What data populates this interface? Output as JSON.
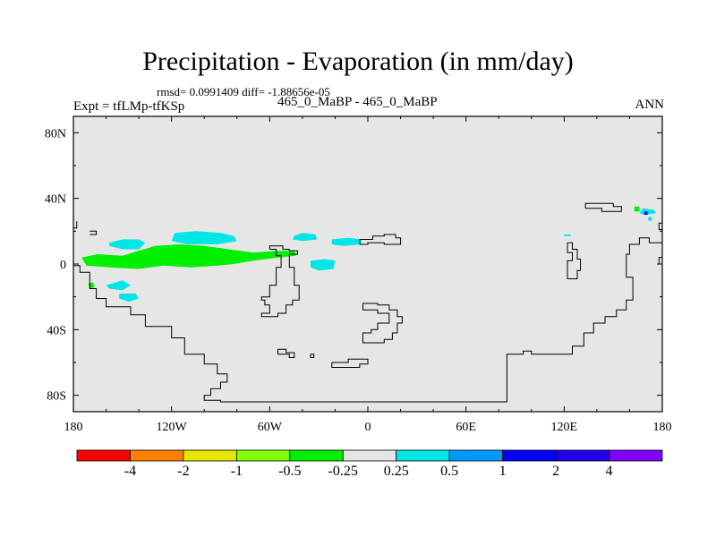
{
  "chart_data": {
    "type": "heatmap",
    "title": "Precipitation - Evaporation (in mm/day)",
    "stats_text": "rmsd= 0.0991409 diff= -1.88656e-05",
    "experiment": "Expt = tfLMp-tfKSp",
    "center_label": "465_0_MaBP - 465_0_MaBP",
    "season": "ANN",
    "xlim": [
      -180,
      180
    ],
    "ylim": [
      -90,
      90
    ],
    "x_ticks": [
      {
        "value": -180,
        "label": "180"
      },
      {
        "value": -120,
        "label": "120W"
      },
      {
        "value": -60,
        "label": "60W"
      },
      {
        "value": 0,
        "label": "0"
      },
      {
        "value": 60,
        "label": "60E"
      },
      {
        "value": 120,
        "label": "120E"
      },
      {
        "value": 180,
        "label": "180"
      }
    ],
    "y_ticks": [
      {
        "value": 80,
        "label": "80N"
      },
      {
        "value": 40,
        "label": "40N"
      },
      {
        "value": 0,
        "label": "0"
      },
      {
        "value": -40,
        "label": "40S"
      },
      {
        "value": -80,
        "label": "80S"
      }
    ],
    "colorbar": {
      "colors": [
        "#ff0000",
        "#ff8000",
        "#e6e600",
        "#80ff00",
        "#00f000",
        "#e6e6e6",
        "#00e6e6",
        "#0099ff",
        "#0000ff",
        "#2000e6",
        "#8000ff"
      ],
      "labels": [
        "-4",
        "-2",
        "-1",
        "-0.5",
        "-0.25",
        "0.25",
        "0.5",
        "1",
        "2",
        "4"
      ]
    },
    "regions": [
      {
        "class": "-0.5 to -0.25",
        "color": "#00f000",
        "points": [
          [
            -175,
            4
          ],
          [
            -165,
            6
          ],
          [
            -150,
            5
          ],
          [
            -130,
            11
          ],
          [
            -115,
            12
          ],
          [
            -100,
            11
          ],
          [
            -85,
            9
          ],
          [
            -70,
            7
          ],
          [
            -55,
            8
          ],
          [
            -45,
            8
          ],
          [
            -44,
            5
          ],
          [
            -55,
            4
          ],
          [
            -70,
            2
          ],
          [
            -82,
            0
          ],
          [
            -92,
            -1
          ],
          [
            -108,
            -2
          ],
          [
            -125,
            -1
          ],
          [
            -140,
            -3
          ],
          [
            -158,
            -2
          ],
          [
            -172,
            -1
          ]
        ]
      },
      {
        "class": "-0.5 to -0.25",
        "color": "#00f000",
        "points": [
          [
            -171,
            -12
          ],
          [
            -168,
            -11
          ],
          [
            -167,
            -14
          ],
          [
            -170,
            -15
          ]
        ]
      },
      {
        "class": "-0.5 to -0.25",
        "color": "#00f000",
        "points": [
          [
            163,
            35
          ],
          [
            166,
            35
          ],
          [
            166,
            32
          ],
          [
            163,
            32
          ]
        ]
      },
      {
        "class": "0.25 to 0.5",
        "color": "#00e6e6",
        "points": [
          [
            -158,
            13
          ],
          [
            -150,
            15
          ],
          [
            -140,
            15
          ],
          [
            -136,
            13
          ],
          [
            -140,
            9
          ],
          [
            -150,
            9
          ],
          [
            -158,
            11
          ]
        ]
      },
      {
        "class": "0.25 to 0.5",
        "color": "#00e6e6",
        "points": [
          [
            -118,
            19
          ],
          [
            -105,
            20
          ],
          [
            -90,
            19
          ],
          [
            -82,
            17
          ],
          [
            -80,
            14
          ],
          [
            -92,
            12
          ],
          [
            -110,
            12
          ],
          [
            -120,
            14
          ]
        ]
      },
      {
        "class": "0.25 to 0.5",
        "color": "#00e6e6",
        "points": [
          [
            -45,
            17
          ],
          [
            -40,
            19
          ],
          [
            -32,
            18
          ],
          [
            -31,
            15
          ],
          [
            -40,
            14
          ],
          [
            -46,
            15
          ]
        ]
      },
      {
        "class": "0.25 to 0.5",
        "color": "#00e6e6",
        "points": [
          [
            -22,
            15
          ],
          [
            -12,
            16
          ],
          [
            -4,
            15
          ],
          [
            -4,
            12
          ],
          [
            -15,
            11
          ],
          [
            -22,
            12
          ]
        ]
      },
      {
        "class": "0.25 to 0.5",
        "color": "#00e6e6",
        "points": [
          [
            -35,
            2
          ],
          [
            -26,
            3
          ],
          [
            -20,
            2
          ],
          [
            -21,
            -3
          ],
          [
            -30,
            -4
          ],
          [
            -35,
            -2
          ]
        ]
      },
      {
        "class": "0.25 to 0.5",
        "color": "#00e6e6",
        "points": [
          [
            -160,
            -13
          ],
          [
            -150,
            -10
          ],
          [
            -145,
            -13
          ],
          [
            -150,
            -16
          ],
          [
            -158,
            -15
          ]
        ]
      },
      {
        "class": "0.25 to 0.5",
        "color": "#00e6e6",
        "points": [
          [
            -152,
            -18
          ],
          [
            -142,
            -18
          ],
          [
            -140,
            -21
          ],
          [
            -146,
            -23
          ],
          [
            -152,
            -21
          ]
        ]
      },
      {
        "class": "0.25 to 0.5",
        "color": "#00e6e6",
        "points": [
          [
            120,
            18
          ],
          [
            124,
            18
          ],
          [
            124,
            17
          ],
          [
            120,
            17
          ]
        ]
      },
      {
        "class": "0.25 to 0.5",
        "color": "#00e6e6",
        "points": [
          [
            168,
            34
          ],
          [
            175,
            33
          ],
          [
            176,
            31
          ],
          [
            169,
            30
          ],
          [
            166,
            31
          ]
        ]
      },
      {
        "class": "0.25 to 0.5",
        "color": "#00e6e6",
        "points": [
          [
            172,
            29
          ],
          [
            174,
            28
          ],
          [
            173,
            26
          ],
          [
            171,
            27
          ]
        ]
      },
      {
        "class": "1 to 2",
        "color": "#0000ff",
        "points": [
          [
            169,
            32
          ],
          [
            171,
            32
          ],
          [
            171,
            30
          ],
          [
            169,
            30
          ]
        ]
      }
    ],
    "coastlines": [
      [
        [
          -170,
          18
        ],
        [
          -166,
          18
        ],
        [
          -166,
          20
        ],
        [
          -170,
          20
        ]
      ],
      [
        [
          -180,
          -1
        ],
        [
          -176,
          -1
        ],
        [
          -176,
          -5
        ],
        [
          -170,
          -5
        ],
        [
          -170,
          -15
        ],
        [
          -166,
          -15
        ],
        [
          -166,
          -21
        ],
        [
          -160,
          -21
        ],
        [
          -160,
          -26
        ],
        [
          -145,
          -26
        ],
        [
          -145,
          -31
        ],
        [
          -136,
          -31
        ],
        [
          -136,
          -38
        ],
        [
          -120,
          -38
        ],
        [
          -120,
          -45
        ],
        [
          -112,
          -45
        ],
        [
          -112,
          -55
        ],
        [
          -100,
          -55
        ],
        [
          -100,
          -61
        ],
        [
          -92,
          -61
        ],
        [
          -92,
          -67
        ],
        [
          -86,
          -67
        ],
        [
          -86,
          -72
        ],
        [
          -90,
          -72
        ],
        [
          -90,
          -76
        ],
        [
          -96,
          -76
        ],
        [
          -96,
          -80
        ],
        [
          -100,
          -80
        ],
        [
          -100,
          -83
        ],
        [
          -90,
          -83
        ],
        [
          -90,
          -84
        ],
        [
          -20,
          -84
        ],
        [
          -20,
          -84
        ],
        [
          60,
          -84
        ],
        [
          60,
          -84
        ],
        [
          85,
          -84
        ],
        [
          85,
          -55
        ],
        [
          95,
          -55
        ],
        [
          95,
          -53
        ],
        [
          100,
          -53
        ],
        [
          100,
          -55
        ],
        [
          125,
          -55
        ],
        [
          125,
          -50
        ],
        [
          132,
          -50
        ],
        [
          132,
          -42
        ],
        [
          138,
          -42
        ],
        [
          138,
          -36
        ],
        [
          145,
          -36
        ],
        [
          145,
          -32
        ],
        [
          152,
          -32
        ],
        [
          152,
          -28
        ],
        [
          158,
          -28
        ],
        [
          158,
          -22
        ],
        [
          162,
          -22
        ],
        [
          162,
          -8
        ],
        [
          158,
          -8
        ],
        [
          158,
          6
        ],
        [
          160,
          6
        ],
        [
          160,
          12
        ],
        [
          166,
          12
        ],
        [
          166,
          16
        ],
        [
          172,
          16
        ],
        [
          172,
          13
        ],
        [
          180,
          13
        ]
      ],
      [
        [
          -180,
          22
        ],
        [
          -178,
          22
        ],
        [
          -178,
          26
        ]
      ],
      [
        [
          -60,
          9
        ],
        [
          -56,
          9
        ],
        [
          -56,
          5
        ],
        [
          -53,
          5
        ],
        [
          -53,
          -2
        ],
        [
          -56,
          -2
        ],
        [
          -56,
          -13
        ],
        [
          -60,
          -13
        ],
        [
          -60,
          -20
        ],
        [
          -65,
          -20
        ],
        [
          -65,
          -22
        ],
        [
          -63,
          -22
        ],
        [
          -63,
          -25
        ],
        [
          -60,
          -25
        ],
        [
          -60,
          -30
        ],
        [
          -65,
          -30
        ],
        [
          -65,
          -32
        ],
        [
          -55,
          -32
        ],
        [
          -55,
          -30
        ],
        [
          -50,
          -30
        ],
        [
          -50,
          -25
        ],
        [
          -46,
          -25
        ],
        [
          -46,
          -22
        ],
        [
          -42,
          -22
        ],
        [
          -42,
          -13
        ],
        [
          -45,
          -13
        ],
        [
          -45,
          -2
        ],
        [
          -48,
          -2
        ],
        [
          -48,
          6
        ],
        [
          -43,
          6
        ],
        [
          -43,
          8
        ],
        [
          -48,
          8
        ],
        [
          -48,
          9
        ],
        [
          -52,
          9
        ],
        [
          -52,
          11
        ],
        [
          -60,
          11
        ],
        [
          -60,
          9
        ]
      ],
      [
        [
          -5,
          12
        ],
        [
          -5,
          15
        ],
        [
          3,
          15
        ],
        [
          3,
          17
        ],
        [
          10,
          17
        ],
        [
          10,
          18
        ],
        [
          17,
          18
        ],
        [
          17,
          16
        ],
        [
          20,
          16
        ],
        [
          20,
          12
        ],
        [
          10,
          12
        ],
        [
          10,
          13
        ],
        [
          0,
          13
        ],
        [
          0,
          12
        ],
        [
          -5,
          12
        ]
      ],
      [
        [
          -3,
          -25
        ],
        [
          -3,
          -28
        ],
        [
          6,
          -28
        ],
        [
          6,
          -30
        ],
        [
          13,
          -30
        ],
        [
          13,
          -36
        ],
        [
          6,
          -36
        ],
        [
          6,
          -40
        ],
        [
          2,
          -40
        ],
        [
          2,
          -42
        ],
        [
          -3,
          -42
        ],
        [
          -3,
          -48
        ],
        [
          10,
          -48
        ],
        [
          10,
          -46
        ],
        [
          15,
          -46
        ],
        [
          15,
          -42
        ],
        [
          18,
          -42
        ],
        [
          18,
          -36
        ],
        [
          21,
          -36
        ],
        [
          21,
          -32
        ],
        [
          18,
          -32
        ],
        [
          18,
          -28
        ],
        [
          13,
          -28
        ],
        [
          13,
          -25
        ],
        [
          6,
          -25
        ],
        [
          6,
          -24
        ],
        [
          -3,
          -24
        ],
        [
          -3,
          -25
        ]
      ],
      [
        [
          -35,
          -55
        ],
        [
          -35,
          -57
        ],
        [
          -33,
          -57
        ],
        [
          -33,
          -55
        ],
        [
          -35,
          -55
        ]
      ],
      [
        [
          -22,
          -60
        ],
        [
          -22,
          -63
        ],
        [
          -5,
          -63
        ],
        [
          -5,
          -61
        ],
        [
          0,
          -61
        ],
        [
          0,
          -58
        ],
        [
          -12,
          -58
        ],
        [
          -12,
          -60
        ],
        [
          -22,
          -60
        ]
      ],
      [
        [
          -55,
          -52
        ],
        [
          -55,
          -55
        ],
        [
          -48,
          -55
        ],
        [
          -48,
          -57
        ],
        [
          -45,
          -57
        ],
        [
          -45,
          -54
        ],
        [
          -50,
          -54
        ],
        [
          -50,
          -52
        ],
        [
          -55,
          -52
        ]
      ],
      [
        [
          122,
          13
        ],
        [
          122,
          7
        ],
        [
          125,
          7
        ],
        [
          125,
          2
        ],
        [
          122,
          2
        ],
        [
          122,
          -9
        ],
        [
          128,
          -9
        ],
        [
          128,
          -4
        ],
        [
          130,
          -4
        ],
        [
          130,
          3
        ],
        [
          128,
          3
        ],
        [
          128,
          9
        ],
        [
          125,
          9
        ],
        [
          125,
          13
        ],
        [
          122,
          13
        ]
      ],
      [
        [
          133,
          34
        ],
        [
          133,
          37
        ],
        [
          150,
          37
        ],
        [
          150,
          35
        ],
        [
          155,
          35
        ],
        [
          155,
          32
        ],
        [
          143,
          32
        ],
        [
          143,
          34
        ],
        [
          133,
          34
        ]
      ],
      [
        [
          180,
          25
        ],
        [
          178,
          25
        ],
        [
          178,
          21
        ],
        [
          180,
          21
        ]
      ],
      [
        [
          180,
          4
        ],
        [
          178,
          4
        ],
        [
          178,
          0
        ],
        [
          180,
          0
        ]
      ]
    ]
  }
}
